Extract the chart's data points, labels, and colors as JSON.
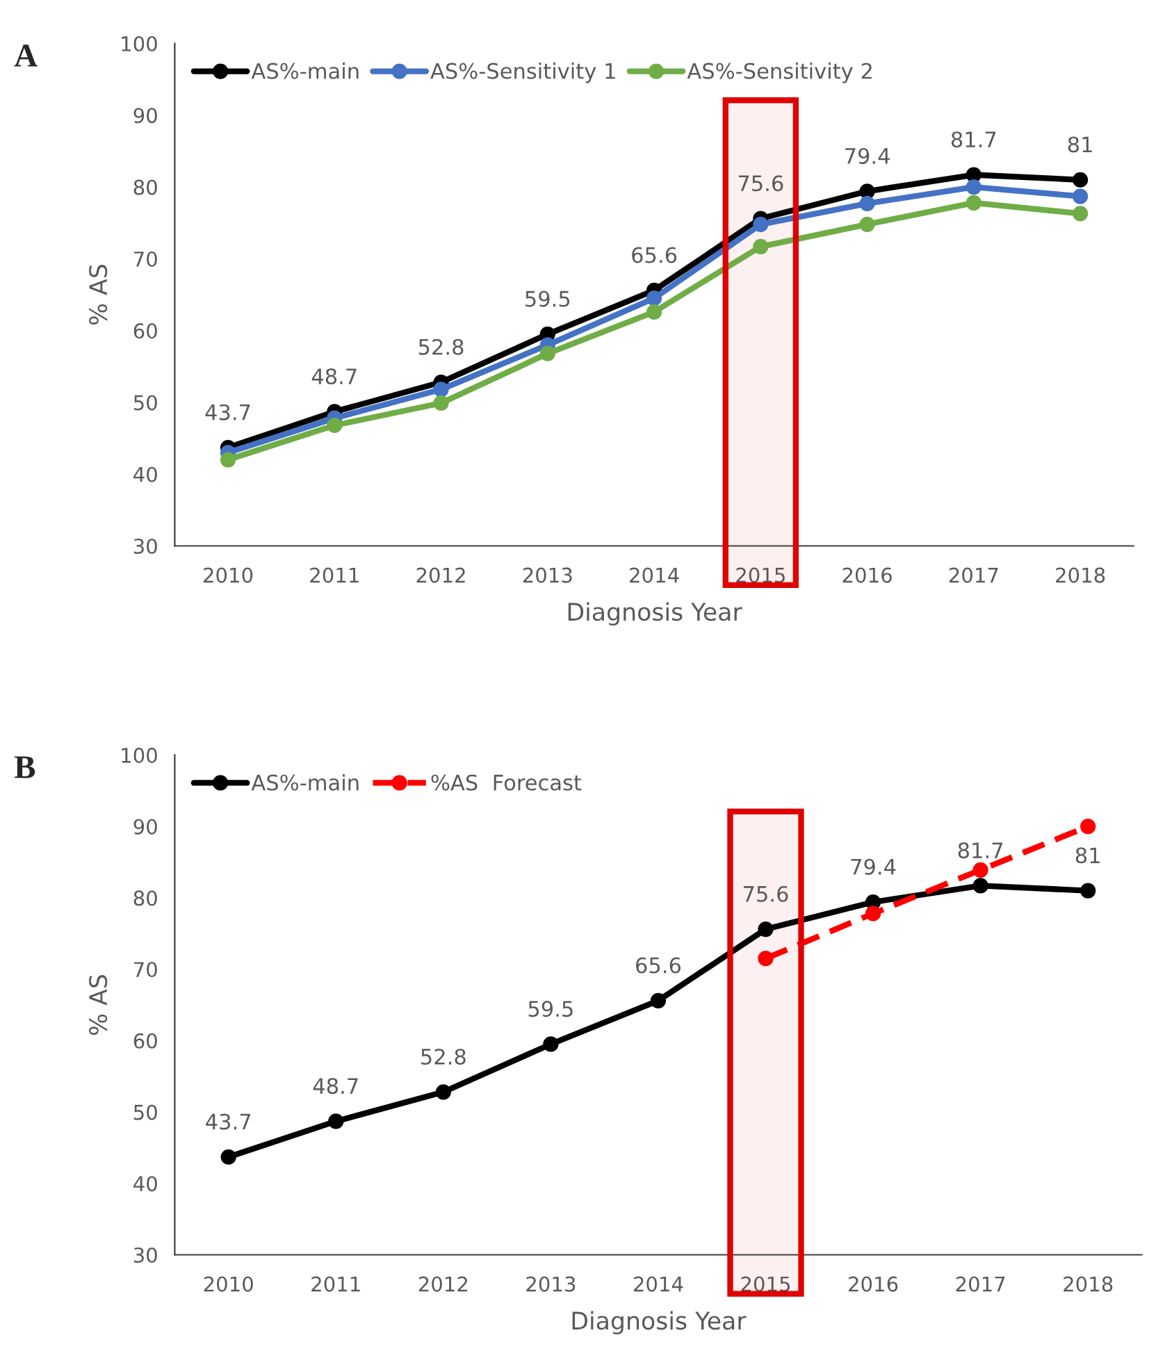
{
  "chart_data": [
    {
      "type": "line",
      "title": "A",
      "xlabel": "Diagnosis Year",
      "ylabel": "% AS",
      "categories": [
        "2010",
        "2011",
        "2012",
        "2013",
        "2014",
        "2015",
        "2016",
        "2017",
        "2018"
      ],
      "series": [
        {
          "name": "AS%-main",
          "color": "#000000",
          "values": [
            43.7,
            48.7,
            52.8,
            59.5,
            65.6,
            75.6,
            79.4,
            81.7,
            81
          ],
          "value_labels": [
            "43.7",
            "48.7",
            "52.8",
            "59.5",
            "65.6",
            "75.6",
            "79.4",
            "81.7",
            "81"
          ]
        },
        {
          "name": "AS%-Sensitivity 1",
          "color": "#4472c4",
          "values": [
            43,
            47.8,
            51.8,
            58,
            64.5,
            74.8,
            77.7,
            80,
            78.7
          ]
        },
        {
          "name": "AS%-Sensitivity 2",
          "color": "#70ad47",
          "values": [
            42,
            46.8,
            49.9,
            56.8,
            62.6,
            71.7,
            74.8,
            77.8,
            76.3
          ]
        }
      ],
      "ylim": [
        30,
        100
      ],
      "yticks": [
        30,
        40,
        50,
        60,
        70,
        80,
        90,
        100
      ],
      "bands": [
        {
          "axis": "x",
          "from": "2015",
          "to": "2015",
          "color": "#e00000"
        }
      ],
      "legend": "top left",
      "grid": false,
      "marker": "circle",
      "line_style": "solid"
    },
    {
      "type": "line",
      "title": "B",
      "xlabel": "Diagnosis Year",
      "ylabel": "% AS",
      "categories": [
        "2010",
        "2011",
        "2012",
        "2013",
        "2014",
        "2015",
        "2016",
        "2017",
        "2018"
      ],
      "series": [
        {
          "name": "AS%-main",
          "color": "#000000",
          "values": [
            43.7,
            48.7,
            52.8,
            59.5,
            65.6,
            75.6,
            79.4,
            81.7,
            81
          ],
          "value_labels": [
            "43.7",
            "48.7",
            "52.8",
            "59.5",
            "65.6",
            "75.6",
            "79.4",
            "81.7",
            "81"
          ]
        },
        {
          "name": "%AS  Forecast",
          "color": "#ff0000",
          "line_style": "dashed",
          "values": [
            null,
            null,
            null,
            null,
            null,
            71.5,
            77.8,
            83.9,
            90
          ]
        }
      ],
      "ylim": [
        30,
        100
      ],
      "yticks": [
        30,
        40,
        50,
        60,
        70,
        80,
        90,
        100
      ],
      "bands": [
        {
          "axis": "x",
          "from": "2015",
          "to": "2015",
          "color": "#e00000"
        }
      ],
      "legend": "top left",
      "grid": false,
      "marker": "circle",
      "line_style": "solid"
    }
  ]
}
